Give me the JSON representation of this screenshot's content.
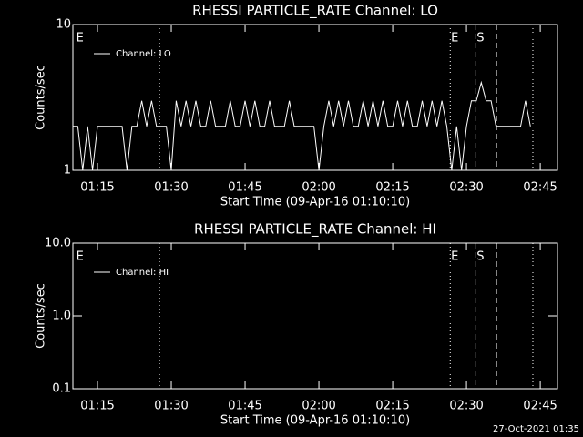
{
  "chart_data": [
    {
      "type": "line",
      "title": "RHESSI PARTICLE_RATE Channel: LO",
      "xlabel": "Start Time (09-Apr-16 01:10:10)",
      "ylabel": "Counts/sec",
      "x": [
        70,
        71,
        72,
        73,
        74,
        75,
        76,
        77,
        78,
        79,
        80,
        81,
        82,
        83,
        84,
        85,
        86,
        87,
        88,
        89,
        90,
        91,
        92,
        93,
        94,
        95,
        96,
        97,
        98,
        99,
        100,
        101,
        102,
        103,
        104,
        105,
        106,
        107,
        108,
        109,
        110,
        111,
        112,
        113,
        114,
        115,
        116,
        117,
        118,
        119,
        120,
        121,
        122,
        123,
        124,
        125,
        126,
        127,
        128,
        129,
        130,
        131,
        132,
        133,
        134,
        135,
        136,
        137,
        138,
        139,
        140,
        141,
        142,
        143,
        144,
        145,
        146,
        147,
        148,
        149,
        150,
        151,
        152,
        153,
        154,
        155,
        156,
        157,
        158,
        159,
        160,
        161,
        162,
        163
      ],
      "series": [
        {
          "name": "Channel: LO",
          "color": "#ffffff",
          "values": [
            2,
            2,
            1,
            2,
            1,
            2,
            2,
            2,
            2,
            2,
            2,
            1,
            2,
            2,
            3,
            2,
            3,
            2,
            2,
            2,
            1,
            3,
            2,
            3,
            2,
            3,
            2,
            2,
            3,
            2,
            2,
            2,
            3,
            2,
            2,
            3,
            2,
            3,
            2,
            2,
            3,
            2,
            2,
            2,
            3,
            2,
            2,
            2,
            2,
            2,
            1,
            2,
            3,
            2,
            3,
            2,
            3,
            2,
            2,
            3,
            2,
            3,
            2,
            3,
            2,
            2,
            3,
            2,
            3,
            2,
            2,
            3,
            2,
            3,
            2,
            3,
            2,
            1,
            2,
            1,
            2,
            3,
            3,
            4,
            3,
            3,
            2,
            2,
            2,
            2,
            2,
            2,
            3,
            2
          ]
        }
      ],
      "xlim": [
        70,
        168.5
      ],
      "xticks": [
        {
          "value": 75,
          "label": "01:15"
        },
        {
          "value": 90,
          "label": "01:30"
        },
        {
          "value": 105,
          "label": "01:45"
        },
        {
          "value": 120,
          "label": "02:00"
        },
        {
          "value": 135,
          "label": "02:15"
        },
        {
          "value": 150,
          "label": "02:30"
        },
        {
          "value": 165,
          "label": "02:45"
        }
      ],
      "ylim": [
        1,
        10
      ],
      "yticks": [
        1,
        10
      ],
      "log_y": true,
      "legend": "upper left",
      "markers": [
        {
          "x": 87.6,
          "style": "dotted"
        },
        {
          "x": 146.7,
          "style": "dotted"
        },
        {
          "x": 151.9,
          "style": "dashed"
        },
        {
          "x": 156.1,
          "style": "dashed"
        },
        {
          "x": 163.5,
          "style": "dotted"
        }
      ],
      "annotations": [
        {
          "text": "E",
          "x": 70.5
        },
        {
          "text": "E",
          "x": 146.7
        },
        {
          "text": "S",
          "x": 151.9
        }
      ]
    },
    {
      "type": "line",
      "title": "RHESSI PARTICLE_RATE Channel: HI",
      "xlabel": "Start Time (09-Apr-16 01:10:10)",
      "ylabel": "Counts/sec",
      "x": [],
      "series": [
        {
          "name": "Channel: HI",
          "color": "#ffffff",
          "values": []
        }
      ],
      "xlim": [
        70,
        168.5
      ],
      "xticks": [
        {
          "value": 75,
          "label": "01:15"
        },
        {
          "value": 90,
          "label": "01:30"
        },
        {
          "value": 105,
          "label": "01:45"
        },
        {
          "value": 120,
          "label": "02:00"
        },
        {
          "value": 135,
          "label": "02:15"
        },
        {
          "value": 150,
          "label": "02:30"
        },
        {
          "value": 165,
          "label": "02:45"
        }
      ],
      "ylim": [
        0.1,
        10
      ],
      "yticks": [
        0.1,
        {
          "value": 1,
          "label": "1.0"
        },
        {
          "value": 10,
          "label": "10.0"
        }
      ],
      "log_y": true,
      "legend": "upper left",
      "markers": [
        {
          "x": 87.6,
          "style": "dotted"
        },
        {
          "x": 146.7,
          "style": "dotted"
        },
        {
          "x": 151.9,
          "style": "dashed"
        },
        {
          "x": 156.1,
          "style": "dashed"
        },
        {
          "x": 163.5,
          "style": "dotted"
        }
      ],
      "annotations": [
        {
          "text": "E",
          "x": 70.5
        },
        {
          "text": "E",
          "x": 146.7
        },
        {
          "text": "S",
          "x": 151.9
        }
      ]
    }
  ],
  "footer": "27-Oct-2021 01:35"
}
